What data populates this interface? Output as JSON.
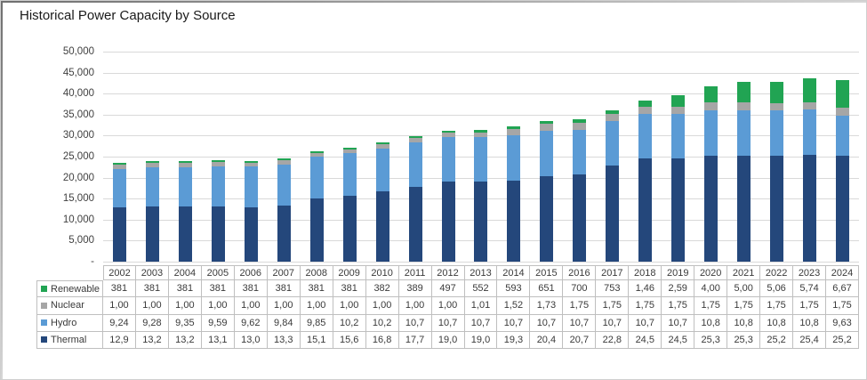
{
  "title": "Historical Power Capacity by Source",
  "colors": {
    "renewable": "#21a453",
    "nuclear": "#a6a6a6",
    "hydro": "#5b9bd5",
    "thermal": "#24477b",
    "gridline": "#d9d9d9",
    "table_border": "#bfbfbf"
  },
  "y_axis": {
    "tick_labels": [
      "50,000",
      "45,000",
      "40,000",
      "35,000",
      "30,000",
      "25,000",
      "20,000",
      "15,000",
      "10,000",
      "5,000",
      "-"
    ],
    "max": 50000,
    "min": 0,
    "step": 5000
  },
  "years": [
    "2002",
    "2003",
    "2004",
    "2005",
    "2006",
    "2007",
    "2008",
    "2009",
    "2010",
    "2011",
    "2012",
    "2013",
    "2014",
    "2015",
    "2016",
    "2017",
    "2018",
    "2019",
    "2020",
    "2021",
    "2022",
    "2023",
    "2024"
  ],
  "table_rows": [
    {
      "label": "Renewable",
      "key": "renewable",
      "display": [
        "381",
        "381",
        "381",
        "381",
        "381",
        "381",
        "381",
        "381",
        "382",
        "389",
        "497",
        "552",
        "593",
        "651",
        "700",
        "753",
        "1,46",
        "2,59",
        "4,00",
        "5,00",
        "5,06",
        "5,74",
        "6,67"
      ]
    },
    {
      "label": "Nuclear",
      "key": "nuclear",
      "display": [
        "1,00",
        "1,00",
        "1,00",
        "1,00",
        "1,00",
        "1,00",
        "1,00",
        "1,00",
        "1,00",
        "1,00",
        "1,00",
        "1,01",
        "1,52",
        "1,73",
        "1,75",
        "1,75",
        "1,75",
        "1,75",
        "1,75",
        "1,75",
        "1,75",
        "1,75",
        "1,75"
      ]
    },
    {
      "label": "Hydro",
      "key": "hydro",
      "display": [
        "9,24",
        "9,28",
        "9,35",
        "9,59",
        "9,62",
        "9,84",
        "9,85",
        "10,2",
        "10,2",
        "10,7",
        "10,7",
        "10,7",
        "10,7",
        "10,7",
        "10,7",
        "10,7",
        "10,7",
        "10,7",
        "10,8",
        "10,8",
        "10,8",
        "10,8",
        "9,63"
      ]
    },
    {
      "label": "Thermal",
      "key": "thermal",
      "display": [
        "12,9",
        "13,2",
        "13,2",
        "13,1",
        "13,0",
        "13,3",
        "15,1",
        "15,6",
        "16,8",
        "17,7",
        "19,0",
        "19,0",
        "19,3",
        "20,4",
        "20,7",
        "22,8",
        "24,5",
        "24,5",
        "25,3",
        "25,3",
        "25,2",
        "25,4",
        "25,2"
      ]
    }
  ],
  "chart_data": {
    "type": "bar",
    "stacked": true,
    "title": "Historical Power Capacity by Source",
    "categories": [
      "2002",
      "2003",
      "2004",
      "2005",
      "2006",
      "2007",
      "2008",
      "2009",
      "2010",
      "2011",
      "2012",
      "2013",
      "2014",
      "2015",
      "2016",
      "2017",
      "2018",
      "2019",
      "2020",
      "2021",
      "2022",
      "2023",
      "2024"
    ],
    "series": [
      {
        "name": "Thermal",
        "key": "thermal",
        "color": "#24477b",
        "values": [
          12900,
          13200,
          13200,
          13100,
          13000,
          13300,
          15100,
          15600,
          16800,
          17700,
          19000,
          19000,
          19300,
          20400,
          20700,
          22800,
          24500,
          24500,
          25300,
          25300,
          25200,
          25400,
          25200
        ]
      },
      {
        "name": "Hydro",
        "key": "hydro",
        "color": "#5b9bd5",
        "values": [
          9240,
          9280,
          9350,
          9590,
          9620,
          9840,
          9850,
          10200,
          10200,
          10700,
          10700,
          10700,
          10700,
          10700,
          10700,
          10700,
          10700,
          10700,
          10800,
          10800,
          10800,
          10800,
          9630
        ]
      },
      {
        "name": "Nuclear",
        "key": "nuclear",
        "color": "#a6a6a6",
        "values": [
          1000,
          1000,
          1000,
          1000,
          1000,
          1000,
          1000,
          1000,
          1000,
          1000,
          1000,
          1010,
          1520,
          1730,
          1750,
          1750,
          1750,
          1750,
          1750,
          1750,
          1750,
          1750,
          1750
        ]
      },
      {
        "name": "Renewable",
        "key": "renewable",
        "color": "#21a453",
        "values": [
          381,
          381,
          381,
          381,
          381,
          381,
          381,
          381,
          382,
          389,
          497,
          552,
          593,
          651,
          700,
          753,
          1460,
          2590,
          4000,
          5000,
          5060,
          5740,
          6670
        ]
      }
    ],
    "xlabel": "",
    "ylabel": "",
    "ylim": [
      0,
      50000
    ],
    "grid": true,
    "legend_position": "left-of-table"
  }
}
